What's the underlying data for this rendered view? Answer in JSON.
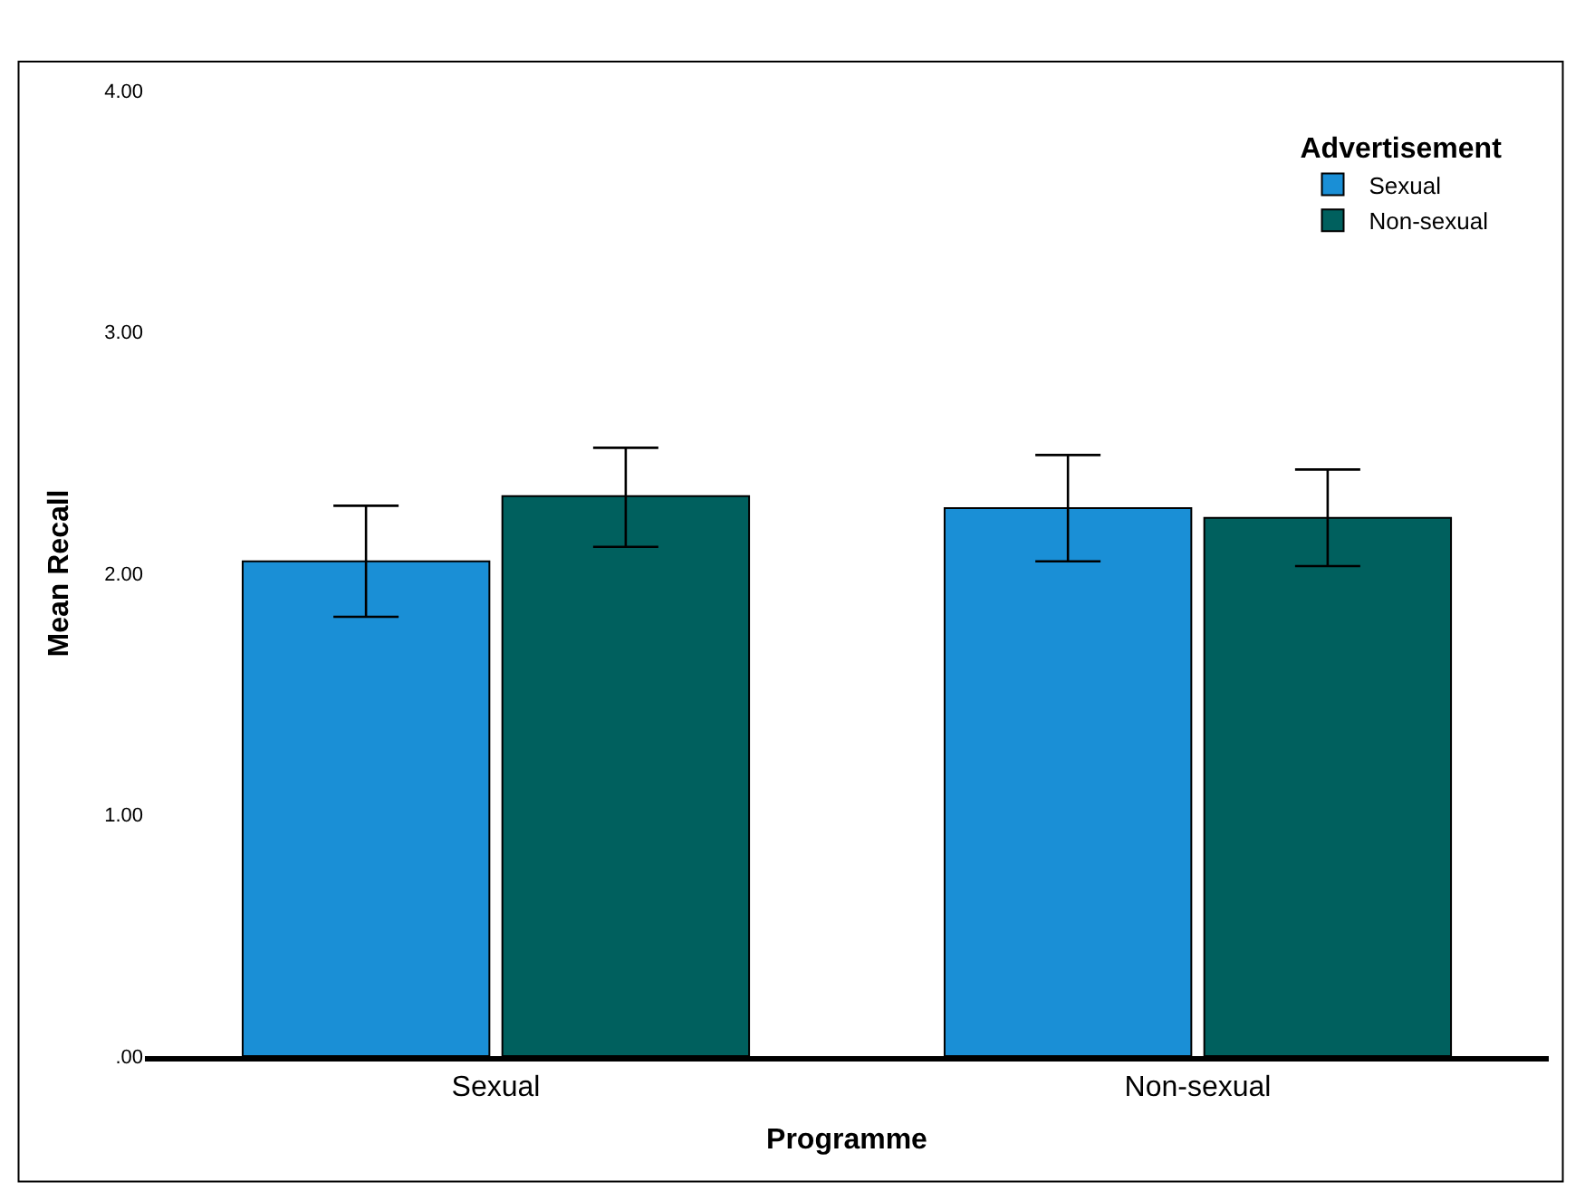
{
  "chart_data": {
    "type": "bar",
    "xlabel": "Programme",
    "ylabel": "Mean Recall",
    "legend_title": "Advertisement",
    "categories": [
      "Sexual",
      "Non-sexual"
    ],
    "series": [
      {
        "name": "Sexual",
        "color": "#1a8fd6",
        "values": [
          2.05,
          2.27
        ],
        "errors": [
          [
            1.82,
            2.28
          ],
          [
            2.05,
            2.49
          ]
        ]
      },
      {
        "name": "Non-sexual",
        "color": "#00605e",
        "values": [
          2.32,
          2.23
        ],
        "errors": [
          [
            2.11,
            2.52
          ],
          [
            2.03,
            2.43
          ]
        ]
      }
    ],
    "ylim": [
      0,
      4
    ],
    "yticks": [
      {
        "value": 0,
        "label": ".00"
      },
      {
        "value": 1,
        "label": "1.00"
      },
      {
        "value": 2,
        "label": "2.00"
      },
      {
        "value": 3,
        "label": "3.00"
      },
      {
        "value": 4,
        "label": "4.00"
      }
    ],
    "legend": "top right"
  }
}
